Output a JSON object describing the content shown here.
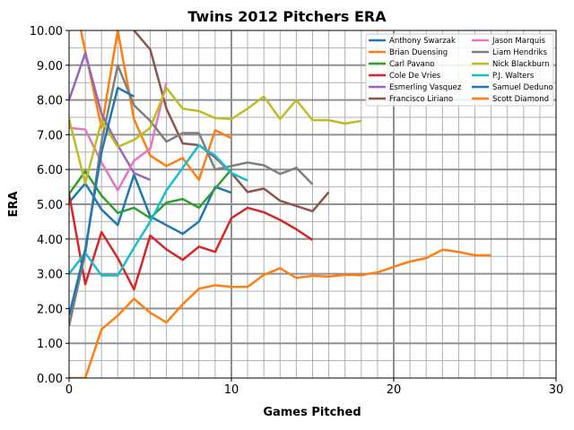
{
  "chart_data": {
    "type": "line",
    "title": "Twins 2012 Pitchers ERA",
    "xlabel": "Games Pitched",
    "ylabel": "ERA",
    "xlim": [
      0,
      30
    ],
    "ylim": [
      0,
      10
    ],
    "xticks": [
      "0",
      "10",
      "20",
      "30"
    ],
    "yticks": [
      "0.00",
      "1.00",
      "2.00",
      "3.00",
      "4.00",
      "5.00",
      "6.00",
      "7.00",
      "8.00",
      "9.00",
      "10.00"
    ],
    "grid": true,
    "legend_position": "top-right",
    "series": [
      {
        "name": "Anthony Swarzak",
        "color": "#1f77b4",
        "x": [
          0,
          1,
          2,
          3,
          4,
          5,
          6,
          7,
          8,
          9,
          10
        ],
        "y": [
          5.05,
          5.6,
          4.85,
          4.4,
          5.85,
          4.65,
          4.4,
          4.15,
          4.5,
          5.5,
          5.33
        ]
      },
      {
        "name": "Brian Duensing",
        "color": "#ff7f0e",
        "x": [
          0,
          1,
          2,
          3,
          4,
          5,
          6,
          7,
          8,
          9,
          10
        ],
        "y": [
          11.6,
          9.4,
          7.2,
          10.0,
          7.45,
          6.4,
          6.1,
          6.33,
          5.7,
          7.13,
          6.9
        ]
      },
      {
        "name": "Carl Pavano",
        "color": "#2ca02c",
        "x": [
          0,
          1,
          2,
          3,
          4,
          5,
          6,
          7,
          8,
          9,
          10
        ],
        "y": [
          5.3,
          5.95,
          5.25,
          4.75,
          4.9,
          4.6,
          5.05,
          5.15,
          4.9,
          5.45,
          6.0
        ]
      },
      {
        "name": "Cole De Vries",
        "color": "#d62728",
        "x": [
          0,
          1,
          2,
          3,
          4,
          5,
          6,
          7,
          8,
          9,
          10,
          11,
          12,
          13,
          14,
          15
        ],
        "y": [
          5.3,
          2.7,
          4.2,
          3.45,
          2.55,
          4.1,
          3.7,
          3.4,
          3.78,
          3.63,
          4.6,
          4.9,
          4.77,
          4.55,
          4.28,
          3.97
        ]
      },
      {
        "name": "Esmerling Vasquez",
        "color": "#9467bd",
        "x": [
          0,
          1,
          2,
          3,
          4,
          5
        ],
        "y": [
          8.0,
          9.35,
          7.6,
          6.7,
          5.9,
          5.7
        ]
      },
      {
        "name": "Francisco Liriano",
        "color": "#8c564b",
        "x": [
          4,
          5,
          6,
          7,
          8,
          9,
          10,
          11,
          12,
          13,
          14,
          15,
          16
        ],
        "y": [
          10.0,
          9.45,
          7.75,
          6.75,
          6.7,
          6.35,
          5.9,
          5.35,
          5.45,
          5.1,
          4.95,
          4.8,
          5.35
        ]
      },
      {
        "name": "Jason Marquis",
        "color": "#e377c2",
        "x": [
          0,
          1,
          2,
          3,
          4,
          5,
          6
        ],
        "y": [
          7.2,
          7.15,
          6.2,
          5.4,
          6.25,
          6.6,
          8.5
        ]
      },
      {
        "name": "Liam Hendriks",
        "color": "#7f7f7f",
        "x": [
          0,
          1,
          2,
          3,
          4,
          5,
          6,
          7,
          8,
          9,
          10,
          11,
          12,
          13,
          14,
          15
        ],
        "y": [
          1.5,
          3.6,
          6.8,
          9.0,
          7.85,
          7.4,
          6.8,
          7.05,
          7.05,
          6.0,
          6.1,
          6.2,
          6.12,
          5.87,
          6.05,
          5.57
        ]
      },
      {
        "name": "Nick Blackburn",
        "color": "#bcbd22",
        "x": [
          0,
          1,
          2,
          3,
          4,
          5,
          6,
          7,
          8,
          9,
          10,
          11,
          12,
          13,
          14,
          15,
          16,
          17,
          18
        ],
        "y": [
          7.45,
          5.6,
          7.4,
          6.65,
          6.85,
          7.2,
          8.35,
          7.75,
          7.68,
          7.48,
          7.45,
          7.75,
          8.1,
          7.45,
          8.0,
          7.42,
          7.42,
          7.32,
          7.4
        ]
      },
      {
        "name": "P.J. Walters",
        "color": "#17becf",
        "x": [
          0,
          1,
          2,
          3,
          4,
          5,
          6,
          7,
          8,
          9,
          10,
          11
        ],
        "y": [
          3.0,
          3.6,
          2.95,
          2.95,
          3.75,
          4.5,
          5.4,
          6.05,
          6.7,
          6.4,
          5.9,
          5.68
        ]
      },
      {
        "name": "Samuel Deduno",
        "color": "#1f77b4",
        "x": [
          0,
          1,
          2,
          3,
          4
        ],
        "y": [
          1.8,
          3.7,
          6.5,
          8.35,
          8.1
        ]
      },
      {
        "name": "Scott Diamond",
        "color": "#ff7f0e",
        "x": [
          0,
          1,
          2,
          3,
          4,
          5,
          6,
          7,
          8,
          9,
          10,
          11,
          12,
          13,
          14,
          15,
          16,
          17,
          18,
          19,
          20,
          21,
          22,
          23,
          24,
          25,
          26
        ],
        "y": [
          0,
          0,
          1.4,
          1.8,
          2.28,
          1.88,
          1.6,
          2.12,
          2.57,
          2.67,
          2.62,
          2.62,
          2.97,
          3.16,
          2.88,
          2.94,
          2.92,
          2.97,
          2.96,
          3.04,
          3.2,
          3.35,
          3.45,
          3.69,
          3.63,
          3.53,
          3.53
        ]
      }
    ]
  }
}
